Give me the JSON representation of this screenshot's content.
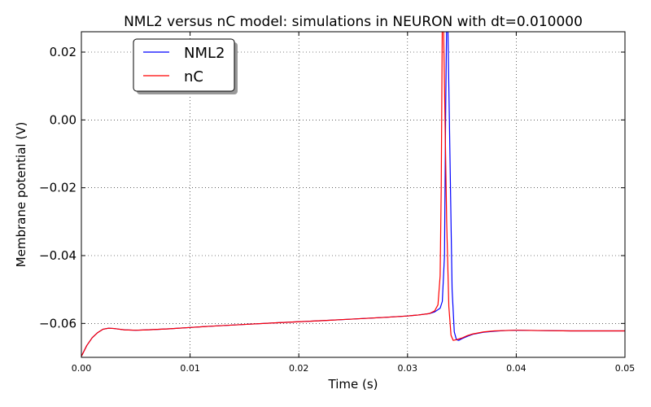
{
  "chart_data": {
    "type": "line",
    "title": "NML2 versus nC model: simulations in NEURON with dt=0.010000",
    "xlabel": "Time (s)",
    "ylabel": "Membrane potential (V)",
    "xlim": [
      0.0,
      0.05
    ],
    "ylim": [
      -0.07,
      0.026
    ],
    "x_ticks": [
      0.0,
      0.01,
      0.02,
      0.03,
      0.04,
      0.05
    ],
    "x_tick_labels": [
      "0.00",
      "0.01",
      "0.02",
      "0.03",
      "0.04",
      "0.05"
    ],
    "y_ticks": [
      0.02,
      0.0,
      -0.02,
      -0.04,
      -0.06
    ],
    "y_tick_labels": [
      "0.02",
      "0.00",
      "−0.02",
      "−0.04",
      "−0.06"
    ],
    "grid": true,
    "legend_position": "top-left",
    "series": [
      {
        "name": "NML2",
        "color": "#0000ff",
        "x": [
          0.0,
          0.0005,
          0.001,
          0.0015,
          0.002,
          0.0025,
          0.003,
          0.0035,
          0.004,
          0.005,
          0.006,
          0.008,
          0.01,
          0.012,
          0.015,
          0.018,
          0.02,
          0.022,
          0.025,
          0.028,
          0.03,
          0.031,
          0.032,
          0.0325,
          0.033,
          0.0332,
          0.0334,
          0.0335,
          0.0336,
          0.0337,
          0.0339,
          0.0341,
          0.0343,
          0.0345,
          0.0347,
          0.035,
          0.0355,
          0.036,
          0.037,
          0.038,
          0.039,
          0.04,
          0.042,
          0.045,
          0.05
        ],
        "y": [
          -0.0697,
          -0.0665,
          -0.0642,
          -0.0627,
          -0.0617,
          -0.0614,
          -0.0615,
          -0.0617,
          -0.0619,
          -0.062,
          -0.0619,
          -0.0616,
          -0.0612,
          -0.0608,
          -0.0603,
          -0.0598,
          -0.0595,
          -0.0592,
          -0.0587,
          -0.0582,
          -0.0578,
          -0.0575,
          -0.0571,
          -0.0566,
          -0.0555,
          -0.0535,
          -0.04,
          -0.0,
          0.03,
          0.03,
          -0.01,
          -0.05,
          -0.0625,
          -0.0648,
          -0.065,
          -0.0645,
          -0.0638,
          -0.0632,
          -0.0626,
          -0.0623,
          -0.0621,
          -0.062,
          -0.0621,
          -0.0622,
          -0.0622
        ]
      },
      {
        "name": "nC",
        "color": "#ff0000",
        "x": [
          0.0,
          0.0005,
          0.001,
          0.0015,
          0.002,
          0.0025,
          0.003,
          0.0035,
          0.004,
          0.005,
          0.006,
          0.008,
          0.01,
          0.012,
          0.015,
          0.018,
          0.02,
          0.022,
          0.025,
          0.028,
          0.03,
          0.031,
          0.032,
          0.0325,
          0.0328,
          0.033,
          0.0331,
          0.0332,
          0.0333,
          0.0334,
          0.0336,
          0.0338,
          0.034,
          0.0342,
          0.0345,
          0.035,
          0.0355,
          0.036,
          0.037,
          0.038,
          0.039,
          0.04,
          0.042,
          0.045,
          0.05
        ],
        "y": [
          -0.0697,
          -0.0665,
          -0.0642,
          -0.0627,
          -0.0617,
          -0.0614,
          -0.0615,
          -0.0617,
          -0.0619,
          -0.062,
          -0.0619,
          -0.0616,
          -0.0612,
          -0.0608,
          -0.0603,
          -0.0598,
          -0.0595,
          -0.0592,
          -0.0587,
          -0.0582,
          -0.0578,
          -0.0575,
          -0.0571,
          -0.0563,
          -0.0545,
          -0.046,
          -0.02,
          0.03,
          0.03,
          0.01,
          -0.03,
          -0.055,
          -0.0635,
          -0.065,
          -0.0648,
          -0.0643,
          -0.0636,
          -0.0631,
          -0.0625,
          -0.0622,
          -0.0621,
          -0.062,
          -0.0621,
          -0.0622,
          -0.0622
        ]
      }
    ]
  }
}
